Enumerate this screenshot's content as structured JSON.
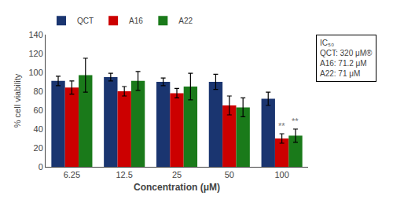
{
  "chart_data": {
    "type": "bar",
    "categories": [
      "6.25",
      "12.5",
      "25",
      "50",
      "100"
    ],
    "series": [
      {
        "name": "QCT",
        "color": "#1a3570",
        "values": [
          91,
          95,
          90,
          90,
          72
        ],
        "errors": [
          5,
          4,
          4,
          8,
          7
        ]
      },
      {
        "name": "A16",
        "color": "#cc0000",
        "values": [
          84,
          80,
          78,
          65,
          30
        ],
        "errors": [
          7,
          5,
          5,
          10,
          5
        ]
      },
      {
        "name": "A22",
        "color": "#1a7a1a",
        "values": [
          97,
          91,
          85,
          63,
          33
        ],
        "errors": [
          18,
          10,
          14,
          10,
          7
        ]
      }
    ],
    "xlabel": "Concentration (μM)",
    "ylabel": "% cell viability",
    "ylim": [
      0,
      140
    ],
    "yticks": [
      0,
      20,
      40,
      60,
      80,
      100,
      120,
      140
    ],
    "grid": false,
    "legend": "upper left",
    "annotations": [
      {
        "text": "IC₅₀\nQCT: 320 μM®\nA16: 71.2 μM\nA22: 71 μM"
      },
      {
        "text": "**",
        "category": "100",
        "series": "A16"
      },
      {
        "text": "**",
        "category": "100",
        "series": "A22"
      }
    ]
  }
}
